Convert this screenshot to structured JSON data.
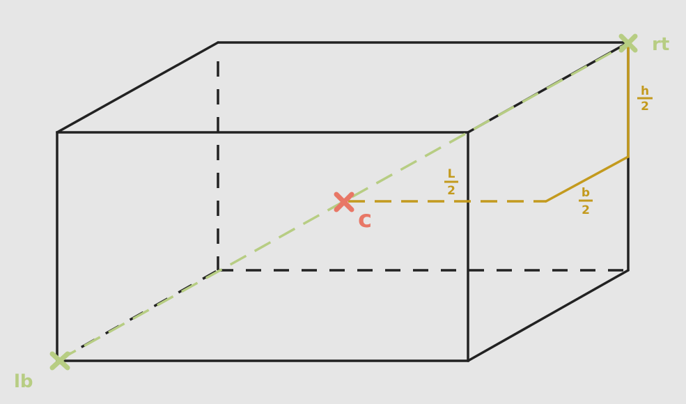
{
  "colors": {
    "background": "#e6e6e6",
    "edge": "#222222",
    "diagonal": "#b7cd83",
    "dimension": "#c39a1e",
    "center": "#e87766"
  },
  "points": {
    "lb": "lb",
    "rt": "rt",
    "center": "c"
  },
  "dimensions": {
    "height_num": "h",
    "height_den": "2",
    "length_num": "L",
    "length_den": "2",
    "breadth_num": "b",
    "breadth_den": "2"
  }
}
